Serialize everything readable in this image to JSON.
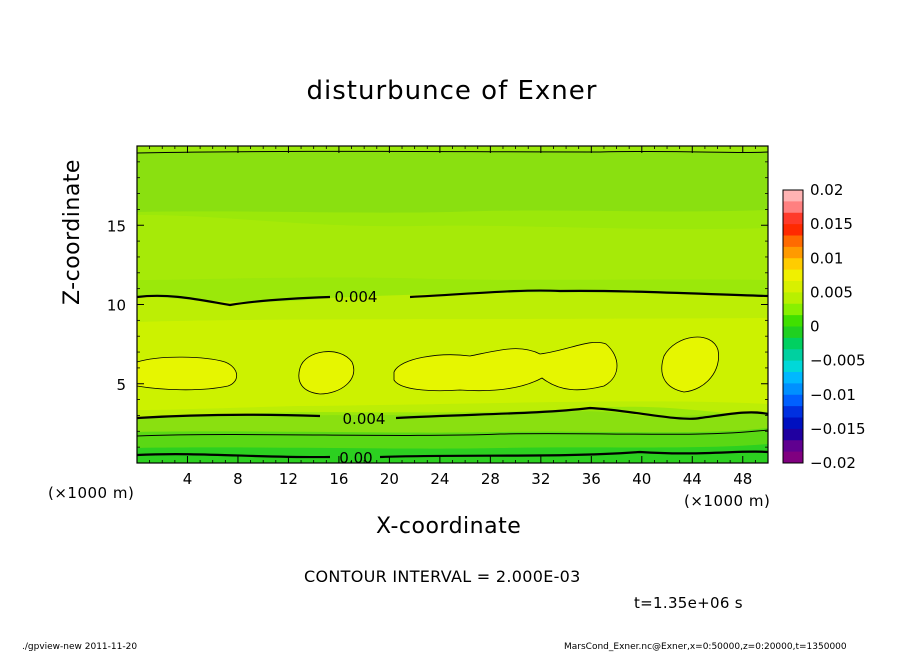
{
  "chart_data": {
    "type": "heatmap",
    "title": "disturbunce of Exner",
    "xlabel": "X-coordinate",
    "ylabel": "Z-coordinate",
    "x_unit": "(×1000 m)",
    "y_unit": "(×1000 m)",
    "xlim": [
      0,
      50
    ],
    "ylim": [
      0,
      20
    ],
    "x_ticks": [
      "4",
      "8",
      "12",
      "16",
      "20",
      "24",
      "28",
      "32",
      "36",
      "40",
      "44",
      "48"
    ],
    "y_ticks": [
      "5",
      "10",
      "15"
    ],
    "colorbar": {
      "ticks": [
        "0.02",
        "0.015",
        "0.01",
        "0.005",
        "0",
        "−0.005",
        "−0.01",
        "−0.015",
        "−0.02"
      ],
      "colors": [
        "#ffb3b3",
        "#ff8080",
        "#ff3a2a",
        "#ff2a00",
        "#ff6a00",
        "#ff9a00",
        "#ffcc00",
        "#f0f000",
        "#d8f000",
        "#b8f000",
        "#88f000",
        "#40e000",
        "#20d020",
        "#00d060",
        "#00d0a0",
        "#00d8d8",
        "#00b8ff",
        "#0090ff",
        "#0060ff",
        "#0030e0",
        "#0010c0",
        "#2000a0",
        "#600090",
        "#800080"
      ]
    },
    "contour_labels": [
      "0.004",
      "0.004",
      "0.00"
    ],
    "contour_interval": "CONTOUR INTERVAL = 2.000E-03",
    "time": "t=1.35e+06 s"
  },
  "footer": {
    "left": "./gpview-new   2011-11-20",
    "right": "MarsCond_Exner.nc@Exner,x=0:50000,z=0:20000,t=1350000"
  }
}
